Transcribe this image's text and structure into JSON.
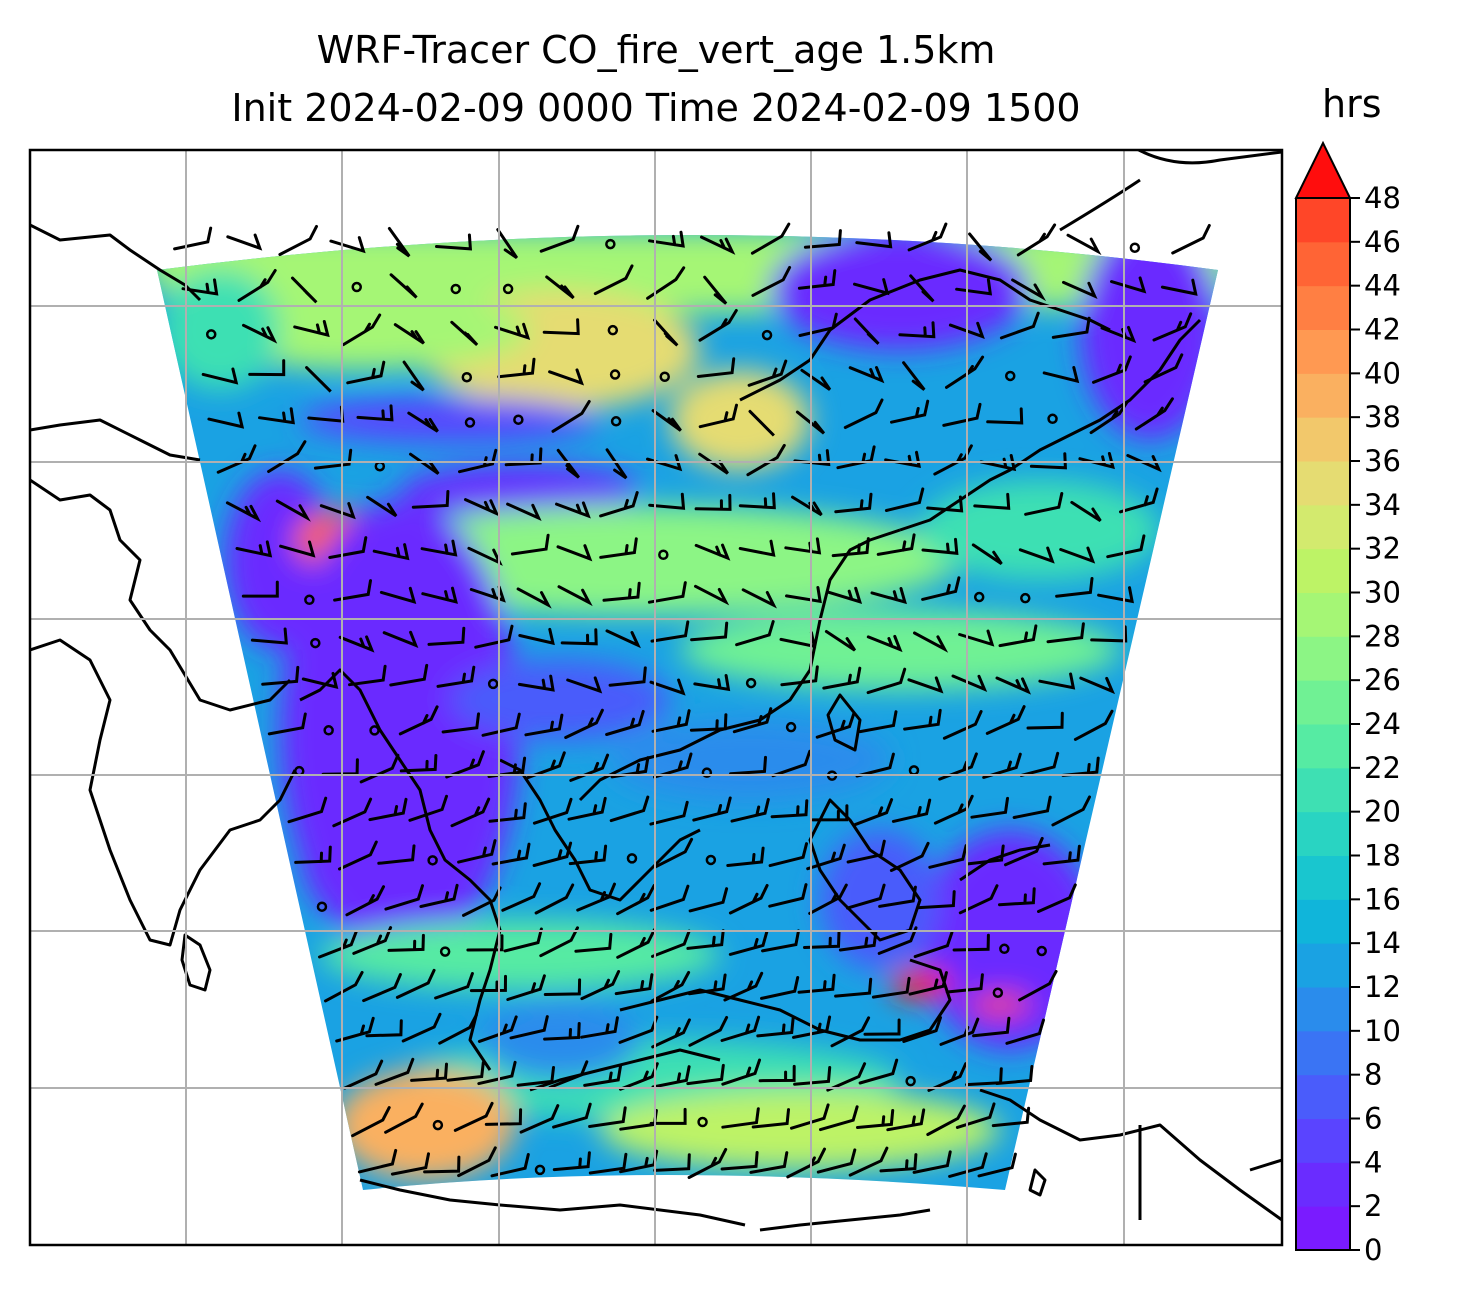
{
  "title": {
    "line1": "WRF-Tracer CO_fire_vert_age 1.5km",
    "line2": "Init 2024-02-09 0000 Time 2024-02-09 1500"
  },
  "colorbar": {
    "unit": "hrs",
    "min": 0,
    "max": 48,
    "step": 2,
    "extend": "max",
    "ticks": [
      0,
      2,
      4,
      6,
      8,
      10,
      12,
      14,
      16,
      18,
      20,
      22,
      24,
      26,
      28,
      30,
      32,
      34,
      36,
      38,
      40,
      42,
      44,
      46,
      48
    ],
    "colors": [
      "#7a1bff",
      "#6a2cff",
      "#5a44ff",
      "#4a5cfb",
      "#3a74f4",
      "#2a8cec",
      "#1aa2e3",
      "#10b5da",
      "#19c6cf",
      "#29d4c2",
      "#3ee0b3",
      "#56eba3",
      "#70f194",
      "#8cf585",
      "#a5f675",
      "#bdf366",
      "#d3ea6e",
      "#e5dc72",
      "#f2c86b",
      "#fab060",
      "#ff9952",
      "#ff7f43",
      "#ff6435",
      "#ff4628",
      "#ff1f1a"
    ],
    "over_color": "#ff0d0d"
  },
  "map": {
    "gridlines": "on",
    "wind_barbs": "on",
    "coastlines": "on",
    "dominant_colors": {
      "low_age": "#6a2cff",
      "mid_age": "#1aa2e3",
      "high_age": "#a5f675",
      "old_age": "#f2c86b",
      "very_old": "#ff1f1a"
    }
  }
}
